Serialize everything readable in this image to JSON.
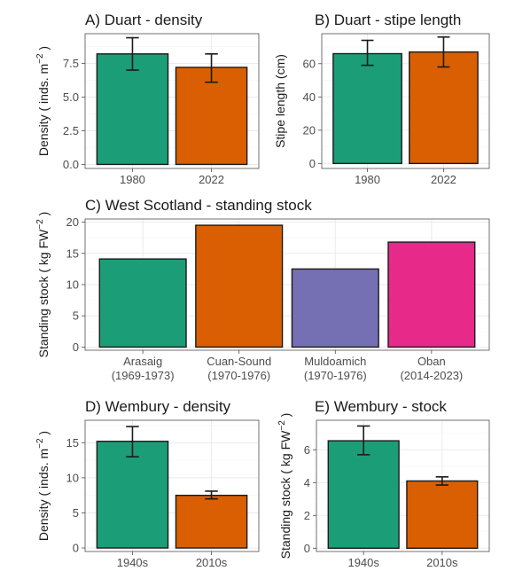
{
  "chart_data": [
    {
      "id": "A",
      "type": "bar",
      "title": "A) Duart - density",
      "ylabel_main": "Density ( inds. m",
      "ylabel_sup": "−2",
      "ylabel_tail": " )",
      "categories": [
        "1980",
        "2022"
      ],
      "values": [
        8.2,
        7.2
      ],
      "error_low": [
        7.0,
        6.1
      ],
      "error_high": [
        9.4,
        8.2
      ],
      "colors": [
        "#1b9e77",
        "#d95f02"
      ],
      "ylim": [
        -0.3,
        9.7
      ],
      "yticks": [
        0.0,
        2.5,
        5.0,
        7.5
      ],
      "ytick_labels": [
        "0.0",
        "2.5",
        "5.0",
        "7.5"
      ],
      "grid": true
    },
    {
      "id": "B",
      "type": "bar",
      "title": "B) Duart - stipe length",
      "ylabel_main": "Stipe length (cm)",
      "ylabel_sup": "",
      "ylabel_tail": "",
      "categories": [
        "1980",
        "2022"
      ],
      "values": [
        66,
        67
      ],
      "error_low": [
        59,
        58
      ],
      "error_high": [
        74,
        76
      ],
      "colors": [
        "#1b9e77",
        "#d95f02"
      ],
      "ylim": [
        -3,
        78
      ],
      "yticks": [
        0,
        20,
        40,
        60
      ],
      "ytick_labels": [
        "0",
        "20",
        "40",
        "60"
      ],
      "grid": true
    },
    {
      "id": "C",
      "type": "bar",
      "title": "C) West Scotland - standing stock",
      "ylabel_main": "Standing stock ( kg FW",
      "ylabel_sup": "−2",
      "ylabel_tail": " )",
      "categories": [
        "Arasaig",
        "Cuan-Sound",
        "Muldoamich",
        "Oban"
      ],
      "category_sub": [
        "(1969-1973)",
        "(1970-1976)",
        "(1970-1976)",
        "(2014-2023)"
      ],
      "values": [
        14.1,
        19.5,
        12.5,
        16.8
      ],
      "colors": [
        "#1b9e77",
        "#d95f02",
        "#7570b3",
        "#e7298a"
      ],
      "ylim": [
        -0.5,
        20.5
      ],
      "yticks": [
        0,
        5,
        10,
        15,
        20
      ],
      "ytick_labels": [
        "0",
        "5",
        "10",
        "15",
        "20"
      ],
      "grid": true
    },
    {
      "id": "D",
      "type": "bar",
      "title": "D) Wembury - density",
      "ylabel_main": "Density ( inds. m",
      "ylabel_sup": "−2",
      "ylabel_tail": " )",
      "categories": [
        "1940s",
        "2010s"
      ],
      "values": [
        15.2,
        7.5
      ],
      "error_low": [
        13.0,
        7.0
      ],
      "error_high": [
        17.3,
        8.1
      ],
      "colors": [
        "#1b9e77",
        "#d95f02"
      ],
      "ylim": [
        -0.5,
        18.2
      ],
      "yticks": [
        0,
        5,
        10,
        15
      ],
      "ytick_labels": [
        "0",
        "5",
        "10",
        "15"
      ],
      "grid": true
    },
    {
      "id": "E",
      "type": "bar",
      "title": "E) Wembury - stock",
      "ylabel_main": "Standing stock ( kg FW",
      "ylabel_sup": "−2",
      "ylabel_tail": " )",
      "categories": [
        "1940s",
        "2010s"
      ],
      "values": [
        6.55,
        4.1
      ],
      "error_low": [
        5.7,
        3.85
      ],
      "error_high": [
        7.45,
        4.35
      ],
      "colors": [
        "#1b9e77",
        "#d95f02"
      ],
      "ylim": [
        -0.2,
        7.8
      ],
      "yticks": [
        0,
        2,
        4,
        6
      ],
      "ytick_labels": [
        "0",
        "2",
        "4",
        "6"
      ],
      "grid": true
    }
  ]
}
